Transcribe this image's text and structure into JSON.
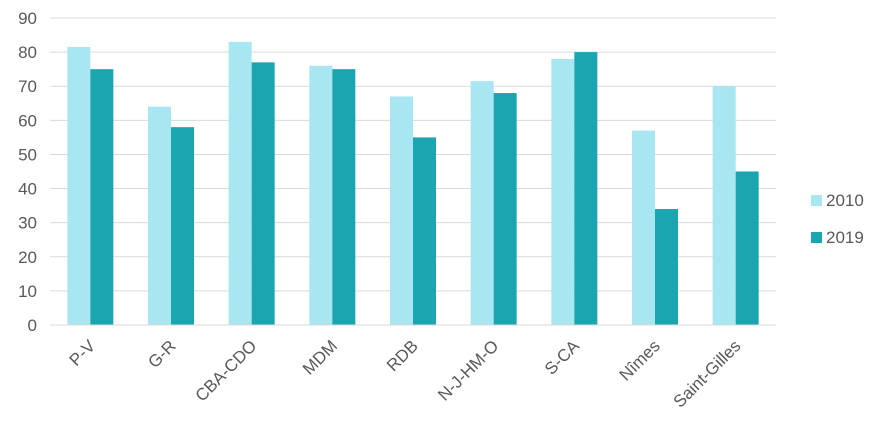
{
  "chart_data": {
    "type": "bar",
    "categories": [
      "P-V",
      "G-R",
      "CBA-CDO",
      "MDM",
      "RDB",
      "N-J-HM-O",
      "S-CA",
      "Nîmes",
      "Saint-Gilles"
    ],
    "series": [
      {
        "name": "2010",
        "color": "#a8e6f2",
        "values": [
          81.5,
          64,
          83,
          76,
          67,
          71.5,
          78,
          57,
          70
        ]
      },
      {
        "name": "2019",
        "color": "#1ba5b0",
        "values": [
          75,
          58,
          77,
          75,
          55,
          68,
          80,
          34,
          45
        ]
      }
    ],
    "ylim": [
      0,
      90
    ],
    "yticks": [
      "0",
      "10",
      "20",
      "30",
      "40",
      "50",
      "60",
      "70",
      "80",
      "90"
    ],
    "grid": true,
    "legend": "right"
  }
}
